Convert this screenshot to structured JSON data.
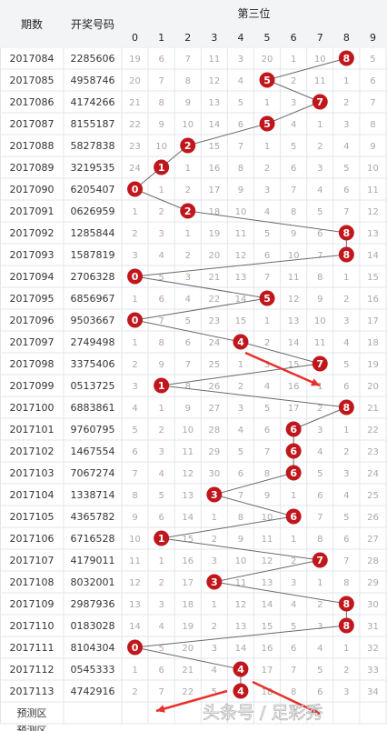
{
  "header": {
    "period_label": "期数",
    "number_label": "开奖号码",
    "position_label": "第三位"
  },
  "digits": [
    "0",
    "1",
    "2",
    "3",
    "4",
    "5",
    "6",
    "7",
    "8",
    "9"
  ],
  "rows": [
    {
      "period": "2017084",
      "number": "2285606",
      "vals": [
        "19",
        "6",
        "7",
        "11",
        "3",
        "20",
        "1",
        "10",
        "8",
        "5"
      ]
    },
    {
      "period": "2017085",
      "number": "4958746",
      "vals": [
        "20",
        "7",
        "8",
        "12",
        "4",
        "5",
        "2",
        "11",
        "1",
        "6"
      ]
    },
    {
      "period": "2017086",
      "number": "4174266",
      "vals": [
        "21",
        "8",
        "9",
        "13",
        "5",
        "1",
        "3",
        "7",
        "2",
        "7"
      ]
    },
    {
      "period": "2017087",
      "number": "8155187",
      "vals": [
        "22",
        "9",
        "10",
        "14",
        "6",
        "5",
        "4",
        "1",
        "3",
        "8"
      ]
    },
    {
      "period": "2017088",
      "number": "5827838",
      "vals": [
        "23",
        "10",
        "2",
        "15",
        "7",
        "1",
        "5",
        "2",
        "4",
        "9"
      ]
    },
    {
      "period": "2017089",
      "number": "3219535",
      "vals": [
        "24",
        "1",
        "1",
        "16",
        "8",
        "2",
        "6",
        "3",
        "5",
        "10"
      ]
    },
    {
      "period": "2017090",
      "number": "6205407",
      "vals": [
        "0",
        "1",
        "2",
        "17",
        "9",
        "3",
        "7",
        "4",
        "6",
        "11"
      ]
    },
    {
      "period": "2017091",
      "number": "0626959",
      "vals": [
        "1",
        "2",
        "2",
        "18",
        "10",
        "4",
        "8",
        "5",
        "7",
        "12"
      ]
    },
    {
      "period": "2017092",
      "number": "1285844",
      "vals": [
        "2",
        "3",
        "1",
        "19",
        "11",
        "5",
        "9",
        "6",
        "8",
        "13"
      ]
    },
    {
      "period": "2017093",
      "number": "1587819",
      "vals": [
        "3",
        "4",
        "2",
        "20",
        "12",
        "6",
        "10",
        "7",
        "8",
        "14"
      ]
    },
    {
      "period": "2017094",
      "number": "2706328",
      "vals": [
        "0",
        "5",
        "3",
        "21",
        "13",
        "7",
        "11",
        "8",
        "1",
        "15"
      ]
    },
    {
      "period": "2017095",
      "number": "6856967",
      "vals": [
        "1",
        "6",
        "4",
        "22",
        "14",
        "5",
        "12",
        "9",
        "2",
        "16"
      ]
    },
    {
      "period": "2017096",
      "number": "9503667",
      "vals": [
        "0",
        "7",
        "5",
        "23",
        "15",
        "1",
        "13",
        "10",
        "3",
        "17"
      ]
    },
    {
      "period": "2017097",
      "number": "2749498",
      "vals": [
        "1",
        "8",
        "6",
        "24",
        "4",
        "2",
        "14",
        "11",
        "4",
        "18"
      ]
    },
    {
      "period": "2017098",
      "number": "3375406",
      "vals": [
        "2",
        "9",
        "7",
        "25",
        "1",
        "3",
        "15",
        "7",
        "5",
        "19"
      ]
    },
    {
      "period": "2017099",
      "number": "0513725",
      "vals": [
        "3",
        "1",
        "8",
        "26",
        "2",
        "4",
        "16",
        "1",
        "6",
        "20"
      ]
    },
    {
      "period": "2017100",
      "number": "6883861",
      "vals": [
        "4",
        "1",
        "9",
        "27",
        "3",
        "5",
        "17",
        "2",
        "8",
        "21"
      ]
    },
    {
      "period": "2017101",
      "number": "9760795",
      "vals": [
        "5",
        "2",
        "10",
        "28",
        "4",
        "6",
        "6",
        "3",
        "1",
        "22"
      ]
    },
    {
      "period": "2017102",
      "number": "1467554",
      "vals": [
        "6",
        "3",
        "11",
        "29",
        "5",
        "7",
        "6",
        "4",
        "2",
        "23"
      ]
    },
    {
      "period": "2017103",
      "number": "7067274",
      "vals": [
        "7",
        "4",
        "12",
        "30",
        "6",
        "8",
        "6",
        "5",
        "3",
        "24"
      ]
    },
    {
      "period": "2017104",
      "number": "1338714",
      "vals": [
        "8",
        "5",
        "13",
        "3",
        "7",
        "9",
        "1",
        "6",
        "4",
        "25"
      ]
    },
    {
      "period": "2017105",
      "number": "4365782",
      "vals": [
        "9",
        "6",
        "14",
        "1",
        "8",
        "10",
        "6",
        "7",
        "5",
        "26"
      ]
    },
    {
      "period": "2017106",
      "number": "6716528",
      "vals": [
        "10",
        "1",
        "15",
        "2",
        "9",
        "11",
        "1",
        "8",
        "6",
        "27"
      ]
    },
    {
      "period": "2017107",
      "number": "4179011",
      "vals": [
        "11",
        "1",
        "16",
        "3",
        "10",
        "12",
        "2",
        "7",
        "7",
        "28"
      ]
    },
    {
      "period": "2017108",
      "number": "8032001",
      "vals": [
        "12",
        "2",
        "17",
        "3",
        "11",
        "13",
        "3",
        "1",
        "8",
        "29"
      ]
    },
    {
      "period": "2017109",
      "number": "2987936",
      "vals": [
        "13",
        "3",
        "18",
        "1",
        "12",
        "14",
        "4",
        "2",
        "8",
        "30"
      ]
    },
    {
      "period": "2017110",
      "number": "0183028",
      "vals": [
        "14",
        "4",
        "19",
        "2",
        "13",
        "15",
        "5",
        "3",
        "8",
        "31"
      ]
    },
    {
      "period": "2017111",
      "number": "8104304",
      "vals": [
        "0",
        "5",
        "20",
        "3",
        "14",
        "16",
        "6",
        "4",
        "1",
        "32"
      ]
    },
    {
      "period": "2017112",
      "number": "0545333",
      "vals": [
        "1",
        "6",
        "21",
        "4",
        "4",
        "17",
        "7",
        "5",
        "2",
        "33"
      ]
    },
    {
      "period": "2017113",
      "number": "4742916",
      "vals": [
        "2",
        "7",
        "22",
        "5",
        "4",
        "18",
        "8",
        "6",
        "3",
        "34"
      ]
    }
  ],
  "forecast_label": "预测区",
  "bottom_cut_label": "预测区",
  "watermark": "头条号 / 足彩秀",
  "colors": {
    "hit_ball": "#c0171d",
    "trend_line": "#6b6b6b",
    "arrow": "#e8302a",
    "grid": "#e2e6ec",
    "header_bg": "#f3f4f6",
    "miss_text": "#a9a9a9"
  }
}
